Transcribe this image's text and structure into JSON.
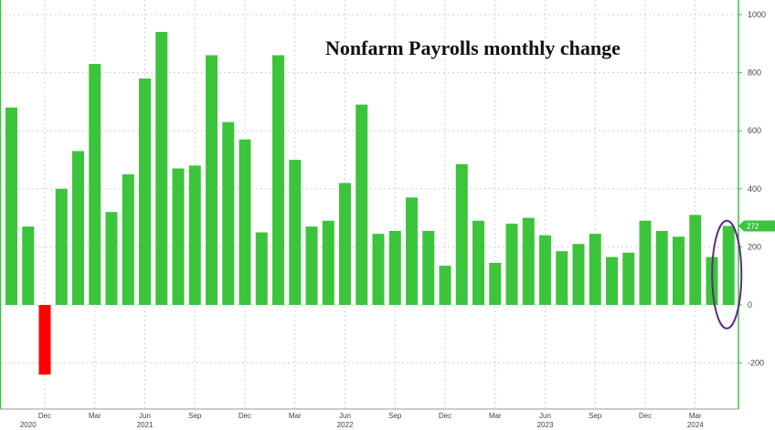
{
  "chart_data": {
    "type": "bar",
    "title": "Nonfarm Payrolls monthly change",
    "xlabel": "",
    "ylabel": "",
    "ylim": [
      -350,
      1000
    ],
    "yticks": [
      1000,
      800,
      600,
      400,
      200,
      0,
      -200
    ],
    "grid": true,
    "series": [
      {
        "values": [
          680,
          270,
          -240,
          400,
          530,
          830,
          320,
          450,
          780,
          940,
          470,
          480,
          860,
          630,
          570,
          250,
          860,
          500,
          270,
          290,
          420,
          690,
          245,
          255,
          370,
          255,
          135,
          485,
          290,
          145,
          280,
          300,
          240,
          185,
          210,
          245,
          165,
          180,
          290,
          255,
          235,
          310,
          165,
          272
        ]
      }
    ],
    "x_tick_labels": [
      {
        "label": "Dec",
        "index": 2
      },
      {
        "label": "Mar",
        "index": 5
      },
      {
        "label": "Jun",
        "index": 8
      },
      {
        "label": "Sep",
        "index": 11
      },
      {
        "label": "Dec",
        "index": 14
      },
      {
        "label": "Mar",
        "index": 17
      },
      {
        "label": "Jun",
        "index": 20
      },
      {
        "label": "Sep",
        "index": 23
      },
      {
        "label": "Dec",
        "index": 26
      },
      {
        "label": "Mar",
        "index": 29
      },
      {
        "label": "Jun",
        "index": 32
      },
      {
        "label": "Sep",
        "index": 35
      },
      {
        "label": "Dec",
        "index": 38
      },
      {
        "label": "Mar",
        "index": 41
      }
    ],
    "year_labels": [
      {
        "label": "2020",
        "index": 1
      },
      {
        "label": "2021",
        "index": 8
      },
      {
        "label": "2022",
        "index": 20
      },
      {
        "label": "2023",
        "index": 32
      },
      {
        "label": "2024",
        "index": 41
      }
    ],
    "last_value_label": "272",
    "highlighted_index": 43,
    "colors": {
      "positive": "#3cc43c",
      "negative": "#ff0000",
      "highlight_ellipse": "#5a2c82",
      "last_value_tag": "#3cc43c",
      "grid": "#d0d0d0"
    }
  }
}
